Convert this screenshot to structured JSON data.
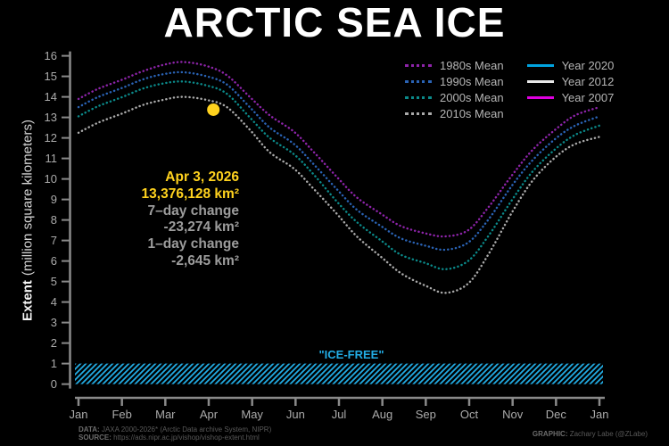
{
  "title": "ARCTIC SEA ICE",
  "annotation": {
    "date": "Apr 3, 2026",
    "extent": "13,376,128 km²",
    "change7_label": "7–day change",
    "change7_value": "-23,274 km²",
    "change1_label": "1–day change",
    "change1_value": "-2,645 km²",
    "highlight_color": "#ffd21e",
    "muted_color": "#9c9c9c"
  },
  "credits": {
    "data_label": "DATA:",
    "data_text": "JAXA 2000-2026* (Arctic Data archive System, NIPR)",
    "source_label": "SOURCE:",
    "source_text": "https://ads.nipr.ac.jp/vishop/vishop-extent.html",
    "graphic_label": "GRAPHIC:",
    "graphic_text": "Zachary Labe (@ZLabe)"
  },
  "chart_data": {
    "type": "line",
    "title": "ARCTIC SEA ICE",
    "ylabel_bold": "Extent",
    "ylabel_rest": "(million square kilometers)",
    "ylim": [
      0,
      16
    ],
    "ytick_step": 1,
    "grid": false,
    "legend_position": "upper right",
    "xtick_labels": [
      "Jan",
      "Feb",
      "Mar",
      "Apr",
      "May",
      "Jun",
      "Jul",
      "Aug",
      "Sep",
      "Oct",
      "Nov",
      "Dec",
      "Jan"
    ],
    "x_days": [
      1,
      15,
      32,
      46,
      60,
      74,
      91,
      105,
      121,
      135,
      152,
      166,
      182,
      196,
      213,
      227,
      244,
      258,
      274,
      288,
      305,
      319,
      335,
      349,
      366
    ],
    "series": [
      {
        "name": "1980s Mean",
        "color": "#8e24aa",
        "style": "dotted",
        "values": [
          13.9,
          14.4,
          14.85,
          15.25,
          15.55,
          15.7,
          15.5,
          15.05,
          14.0,
          13.1,
          12.3,
          11.3,
          10.1,
          9.1,
          8.3,
          7.7,
          7.35,
          7.2,
          7.5,
          8.6,
          10.2,
          11.4,
          12.4,
          13.1,
          13.5
        ]
      },
      {
        "name": "1990s Mean",
        "color": "#2a63b5",
        "style": "dotted",
        "values": [
          13.5,
          14.0,
          14.45,
          14.85,
          15.1,
          15.2,
          15.0,
          14.6,
          13.5,
          12.5,
          11.7,
          10.7,
          9.5,
          8.5,
          7.7,
          7.1,
          6.75,
          6.55,
          6.9,
          8.0,
          9.7,
          10.9,
          11.95,
          12.6,
          13.05
        ]
      },
      {
        "name": "2000s Mean",
        "color": "#0b8a8a",
        "style": "dotted",
        "values": [
          13.05,
          13.55,
          14.0,
          14.4,
          14.65,
          14.75,
          14.55,
          14.15,
          13.0,
          12.0,
          11.2,
          10.2,
          8.9,
          7.9,
          7.0,
          6.3,
          5.9,
          5.6,
          6.0,
          7.2,
          9.0,
          10.35,
          11.45,
          12.15,
          12.6
        ]
      },
      {
        "name": "2010s Mean",
        "color": "#aaaaaa",
        "style": "dotted",
        "values": [
          12.25,
          12.75,
          13.2,
          13.6,
          13.85,
          14.0,
          13.85,
          13.5,
          12.4,
          11.3,
          10.5,
          9.5,
          8.3,
          7.2,
          6.2,
          5.4,
          4.8,
          4.45,
          4.9,
          6.3,
          8.4,
          9.9,
          11.05,
          11.7,
          12.05
        ]
      }
    ],
    "extra_legend": [
      {
        "name": "Year 2020",
        "color": "#00a3e0",
        "style": "solid"
      },
      {
        "name": "Year 2012",
        "color": "#e9e9e9",
        "style": "solid"
      },
      {
        "name": "Year 2007",
        "color": "#df00df",
        "style": "solid"
      }
    ],
    "current_point": {
      "date": "Apr 3, 2026",
      "day": 93,
      "value": 13.376128,
      "color": "#ffd21e"
    },
    "ice_free": {
      "label": "\"ICE-FREE\"",
      "band": [
        0,
        1
      ],
      "color": "#22ace4"
    },
    "axis_color": "#8a8a8a",
    "tick_label_color": "#ababab"
  }
}
